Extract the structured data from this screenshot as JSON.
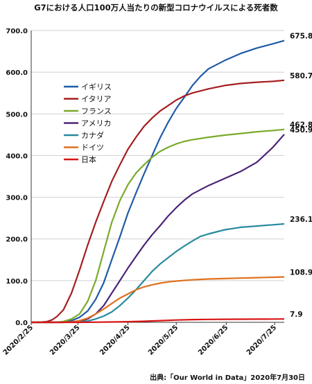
{
  "chart_data": {
    "type": "line",
    "title": "G7における人口100万人当たりの新型コロナウイルスによる死者数",
    "xlabel": "",
    "ylabel": "",
    "ylim": [
      0,
      700
    ],
    "y_ticks": [
      "0.0",
      "100.0",
      "200.0",
      "300.0",
      "400.0",
      "500.0",
      "600.0",
      "700.0"
    ],
    "x_ticks": [
      "2020/2/25",
      "2020/3/25",
      "2020/4/25",
      "2020/5/25",
      "2020/6/25",
      "2020/7/25"
    ],
    "x_tick_days": [
      0,
      29,
      60,
      90,
      121,
      151
    ],
    "x_range_days": [
      0,
      157
    ],
    "grid": "horizontal",
    "legend_position": "center-left",
    "series": [
      {
        "name": "イギリス",
        "color": "#1f5aa6",
        "end_label": "675.8",
        "x": [
          0,
          10,
          15,
          20,
          25,
          30,
          35,
          40,
          45,
          50,
          55,
          60,
          65,
          70,
          75,
          80,
          85,
          90,
          95,
          100,
          105,
          110,
          120,
          130,
          140,
          150,
          157
        ],
        "y": [
          0,
          0,
          0,
          1,
          4,
          12,
          27,
          55,
          95,
          150,
          205,
          262,
          310,
          356,
          400,
          443,
          480,
          513,
          540,
          568,
          590,
          608,
          628,
          645,
          658,
          668,
          675.8
        ]
      },
      {
        "name": "イタリア",
        "color": "#a51e1e",
        "end_label": "580.7",
        "x": [
          0,
          5,
          10,
          13,
          16,
          20,
          25,
          30,
          35,
          40,
          45,
          50,
          55,
          60,
          65,
          70,
          75,
          80,
          85,
          90,
          95,
          100,
          110,
          120,
          130,
          140,
          150,
          157
        ],
        "y": [
          0,
          0,
          2,
          6,
          14,
          30,
          70,
          125,
          185,
          240,
          290,
          338,
          378,
          415,
          444,
          470,
          490,
          507,
          520,
          533,
          543,
          550,
          560,
          568,
          573,
          576,
          578,
          580.7
        ]
      },
      {
        "name": "フランス",
        "color": "#7aaa2a",
        "end_label": "462.8",
        "x": [
          0,
          10,
          15,
          20,
          25,
          30,
          35,
          40,
          45,
          50,
          55,
          60,
          65,
          70,
          75,
          80,
          85,
          90,
          95,
          100,
          110,
          120,
          130,
          140,
          150,
          157
        ],
        "y": [
          0,
          0,
          0,
          2,
          8,
          20,
          50,
          100,
          170,
          240,
          292,
          330,
          358,
          378,
          396,
          410,
          420,
          428,
          434,
          438,
          444,
          449,
          453,
          457,
          460,
          462.8
        ]
      },
      {
        "name": "アメリカ",
        "color": "#4b2378",
        "end_label": "450.9",
        "x": [
          0,
          15,
          20,
          25,
          30,
          35,
          40,
          45,
          50,
          55,
          60,
          65,
          70,
          75,
          80,
          85,
          90,
          95,
          100,
          105,
          110,
          120,
          130,
          140,
          150,
          157
        ],
        "y": [
          0,
          0,
          0,
          1,
          3,
          8,
          20,
          40,
          70,
          100,
          130,
          158,
          185,
          210,
          232,
          255,
          275,
          293,
          308,
          318,
          328,
          345,
          362,
          384,
          420,
          450.9
        ]
      },
      {
        "name": "カナダ",
        "color": "#2889a0",
        "end_label": "236.1",
        "x": [
          0,
          20,
          30,
          35,
          40,
          45,
          50,
          55,
          60,
          65,
          70,
          75,
          80,
          85,
          90,
          95,
          100,
          105,
          110,
          120,
          130,
          140,
          150,
          157
        ],
        "y": [
          0,
          0,
          1,
          3,
          8,
          15,
          25,
          40,
          58,
          78,
          100,
          122,
          140,
          155,
          170,
          183,
          195,
          206,
          212,
          222,
          228,
          231,
          234,
          236.1
        ]
      },
      {
        "name": "ドイツ",
        "color": "#e0701c",
        "end_label": "108.9",
        "x": [
          0,
          20,
          25,
          30,
          35,
          40,
          45,
          50,
          55,
          60,
          65,
          70,
          75,
          80,
          85,
          90,
          100,
          110,
          120,
          130,
          140,
          150,
          157
        ],
        "y": [
          0,
          0,
          1,
          4,
          10,
          20,
          32,
          45,
          58,
          68,
          78,
          85,
          90,
          94,
          97,
          99,
          102,
          104,
          105,
          106,
          107,
          108,
          108.9
        ]
      },
      {
        "name": "日本",
        "color": "#d81414",
        "end_label": "7.9",
        "x": [
          0,
          30,
          40,
          50,
          60,
          70,
          80,
          90,
          100,
          110,
          120,
          130,
          140,
          150,
          157
        ],
        "y": [
          0,
          0,
          0.3,
          0.8,
          1.5,
          2.5,
          4,
          5.5,
          6.5,
          7,
          7.3,
          7.5,
          7.6,
          7.8,
          7.9
        ]
      }
    ]
  },
  "source": "出典:「Our World in Data」2020年7月30日"
}
